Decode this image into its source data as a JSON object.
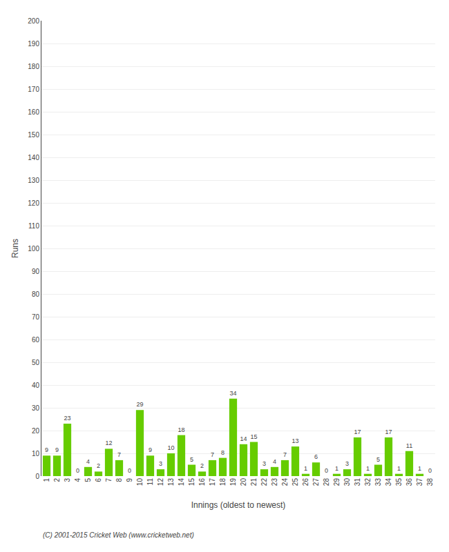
{
  "chart_data": {
    "type": "bar",
    "xlabel": "Innings (oldest to newest)",
    "ylabel": "Runs",
    "categories": [
      "1",
      "2",
      "3",
      "4",
      "5",
      "6",
      "7",
      "8",
      "9",
      "10",
      "11",
      "12",
      "13",
      "14",
      "15",
      "16",
      "17",
      "18",
      "19",
      "20",
      "21",
      "22",
      "23",
      "24",
      "25",
      "26",
      "27",
      "28",
      "29",
      "30",
      "31",
      "32",
      "33",
      "34",
      "35",
      "36",
      "37",
      "38"
    ],
    "values": [
      9,
      9,
      23,
      0,
      4,
      2,
      12,
      7,
      0,
      29,
      9,
      3,
      10,
      18,
      5,
      2,
      7,
      8,
      34,
      14,
      15,
      3,
      4,
      7,
      13,
      1,
      6,
      0,
      1,
      3,
      17,
      1,
      5,
      17,
      1,
      11,
      1,
      0
    ],
    "color": "#66cc00",
    "data_labels": true,
    "ylim": [
      0,
      200
    ],
    "yticks": [
      0,
      10,
      20,
      30,
      40,
      50,
      60,
      70,
      80,
      90,
      100,
      110,
      120,
      130,
      140,
      150,
      160,
      170,
      180,
      190,
      200
    ],
    "grid": true,
    "annotations": [
      "(C) 2001-2015 Cricket Web (www.cricketweb.net)"
    ]
  }
}
